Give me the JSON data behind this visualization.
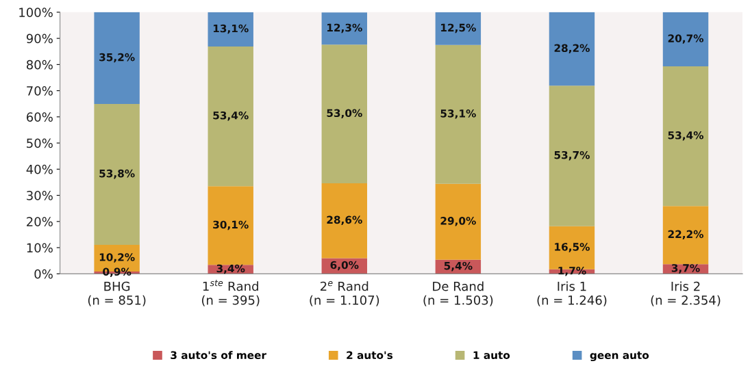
{
  "chart_data": {
    "type": "bar",
    "stacked": true,
    "categories": [
      "BHG\n(n = 851)",
      "1$^{ste}$ Rand\n(n = 395)",
      "2$^{e}$ Rand\n(n = 1.107)",
      "De Rand\n(n = 1.503)",
      "Iris 1\n(n = 1.246)",
      "Iris 2\n(n = 2.354)"
    ],
    "series": [
      {
        "name": "3 auto's of meer",
        "color": "#c9585a",
        "values": [
          0.9,
          3.4,
          6.0,
          5.4,
          1.7,
          3.7
        ],
        "value_labels": [
          "0,9%",
          "3,4%",
          "6,0%",
          "5,4%",
          "1,7%",
          "3,7%"
        ]
      },
      {
        "name": "2 auto's",
        "color": "#e8a42c",
        "values": [
          10.2,
          30.1,
          28.6,
          29.0,
          16.5,
          22.2
        ],
        "value_labels": [
          "10,2%",
          "30,1%",
          "28,6%",
          "29,0%",
          "16,5%",
          "22,2%"
        ]
      },
      {
        "name": "1 auto",
        "color": "#b8b774",
        "values": [
          53.8,
          53.4,
          53.0,
          53.1,
          53.7,
          53.4
        ],
        "value_labels": [
          "53,8%",
          "53,4%",
          "53,0%",
          "53,1%",
          "53,7%",
          "53,4%"
        ]
      },
      {
        "name": "geen auto",
        "color": "#5b8ec3",
        "values": [
          35.2,
          13.1,
          12.3,
          12.5,
          28.2,
          20.7
        ],
        "value_labels": [
          "35,2%",
          "13,1%",
          "12,3%",
          "12,5%",
          "28,2%",
          "20,7%"
        ]
      }
    ],
    "ylim": [
      0,
      100
    ],
    "yticks": [
      {
        "value": 0,
        "label": "0%"
      },
      {
        "value": 10,
        "label": "10%"
      },
      {
        "value": 20,
        "label": "20%"
      },
      {
        "value": 30,
        "label": "30%"
      },
      {
        "value": 40,
        "label": "40%"
      },
      {
        "value": 50,
        "label": "50%"
      },
      {
        "value": 60,
        "label": "60%"
      },
      {
        "value": 70,
        "label": "70%"
      },
      {
        "value": 80,
        "label": "80%"
      },
      {
        "value": 90,
        "label": "90%"
      },
      {
        "value": 100,
        "label": "100%"
      }
    ],
    "grid": false,
    "legend": "bottom"
  }
}
